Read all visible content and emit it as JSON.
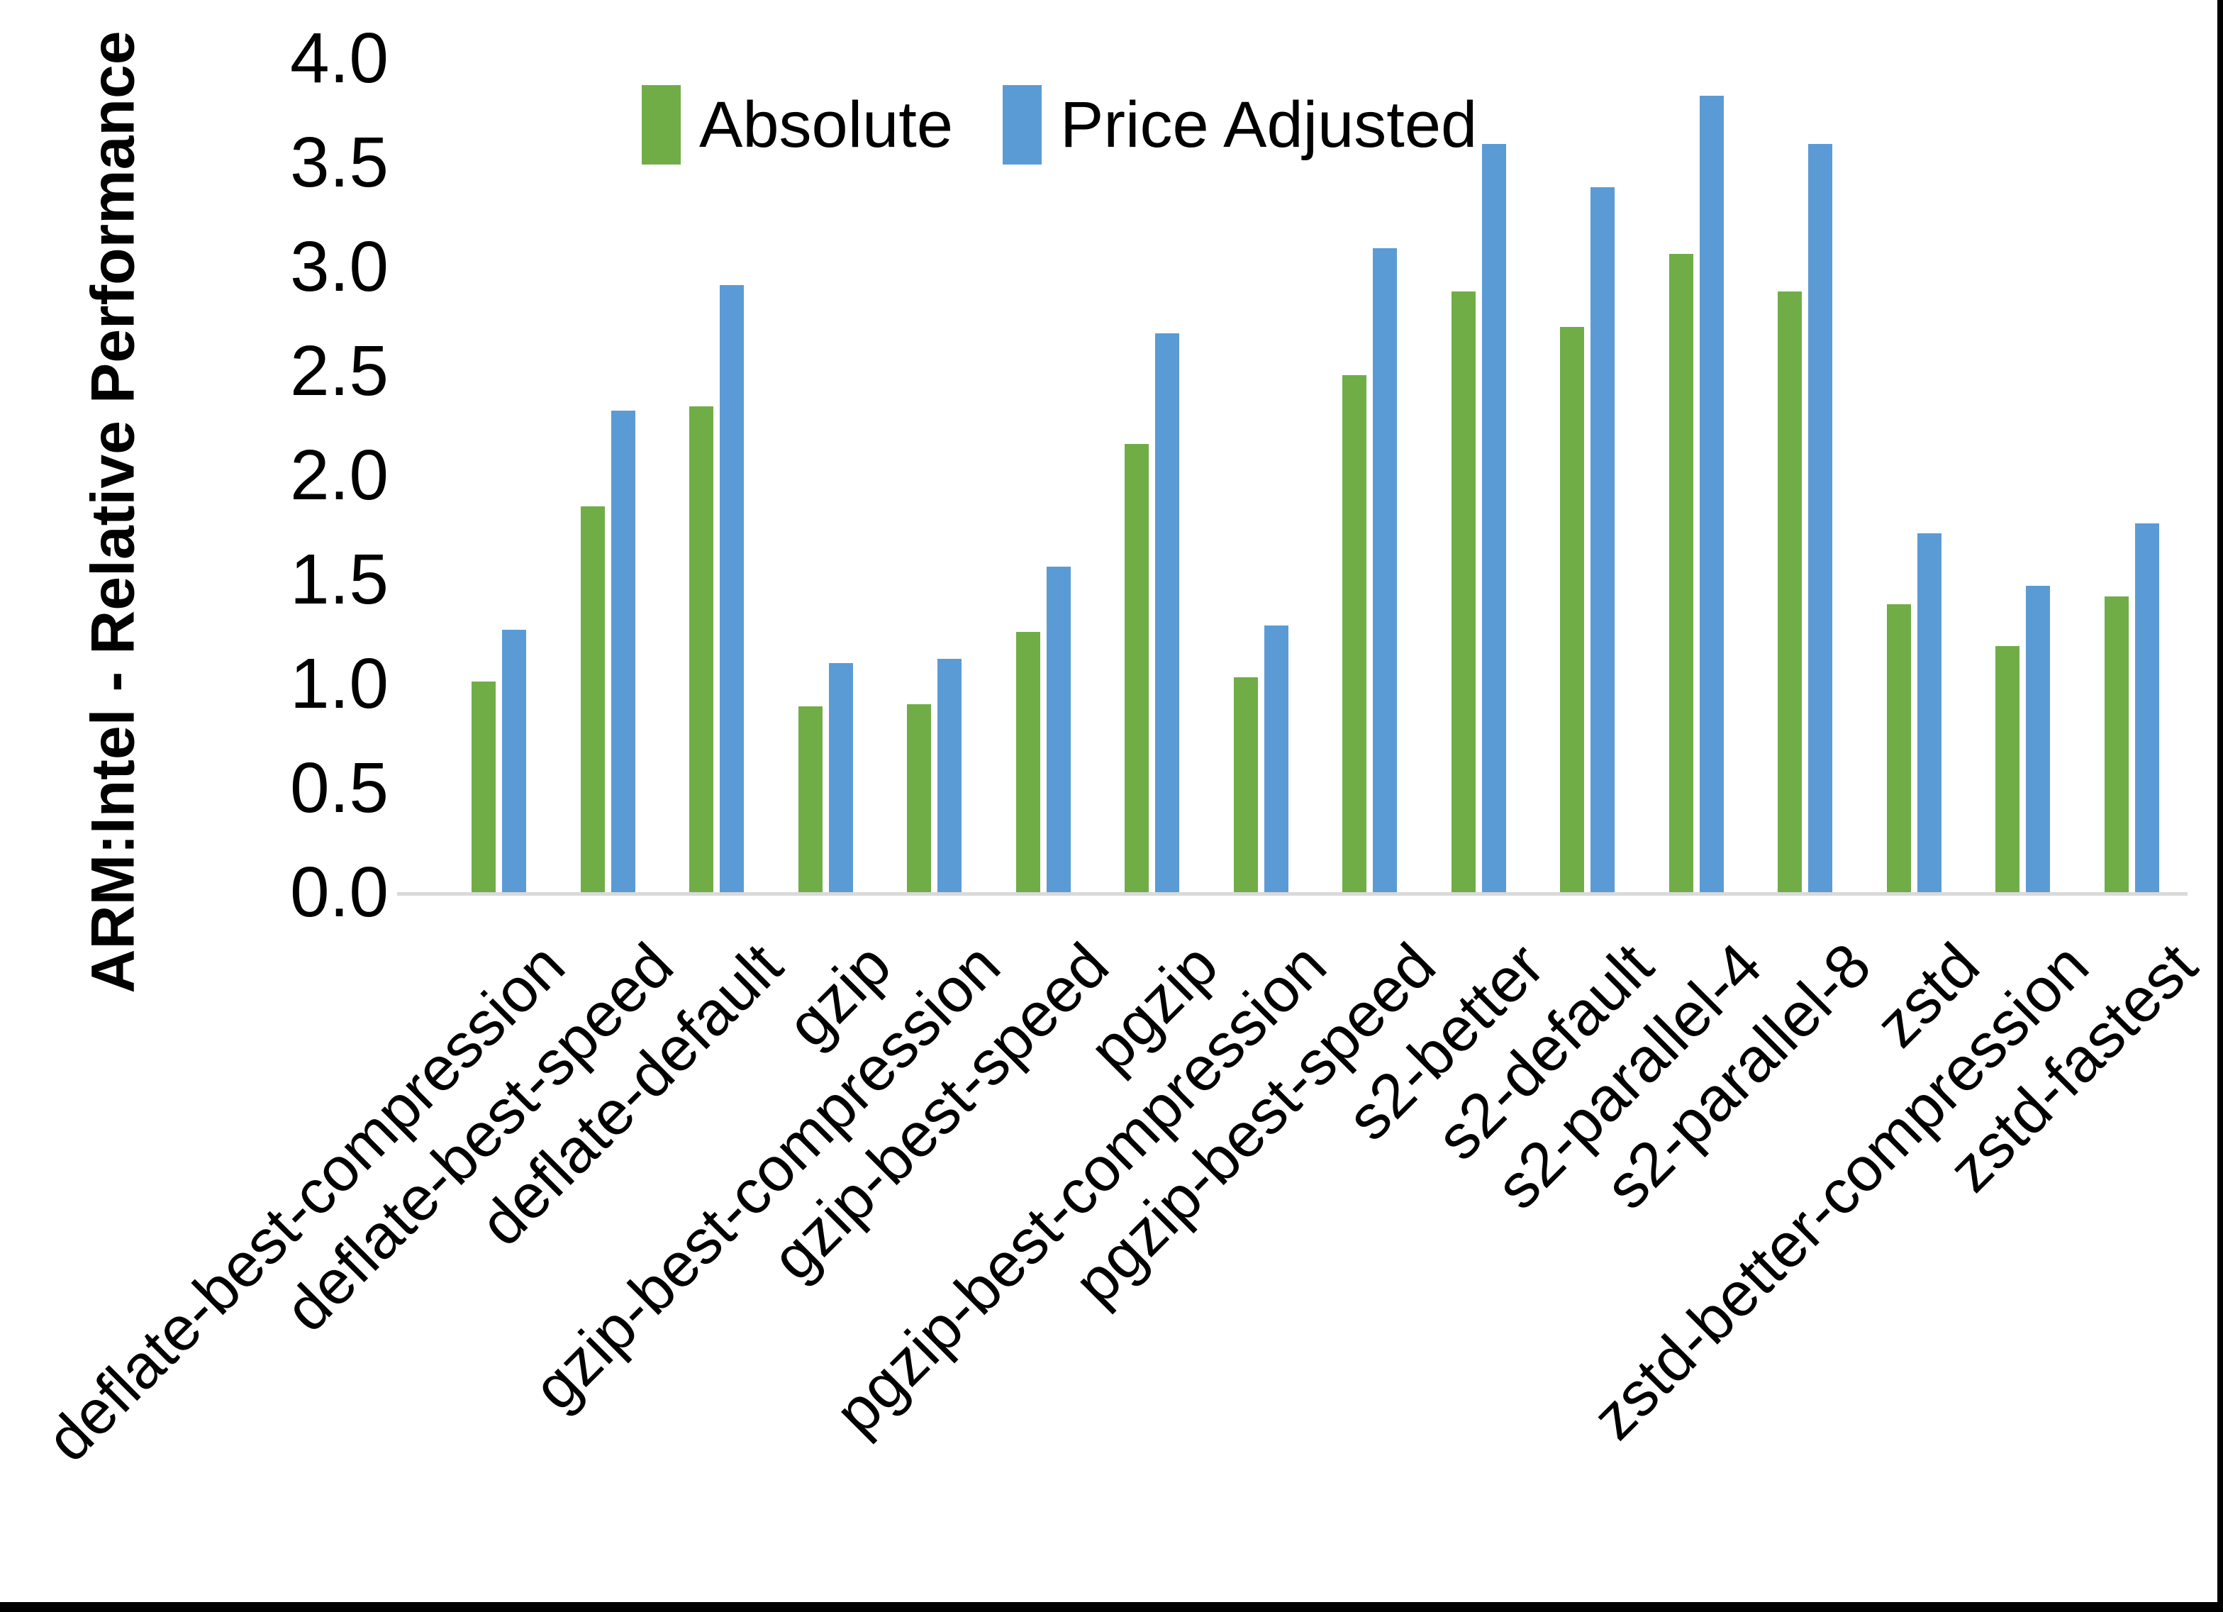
{
  "chart_data": {
    "type": "bar",
    "title": "",
    "ylabel": "ARM:Intel - Relative Performance",
    "xlabel": "",
    "ylim": [
      0.0,
      4.0
    ],
    "ytick_step": 0.5,
    "ytick_decimals": 1,
    "grid": false,
    "legend_position": "top-center",
    "categories": [
      "deflate-best-compression",
      "deflate-best-speed",
      "deflate-default",
      "gzip",
      "gzip-best-compression",
      "gzip-best-speed",
      "pgzip",
      "pgzip-best-compression",
      "pgzip-best-speed",
      "s2-better",
      "s2-default",
      "s2-parallel-4",
      "s2-parallel-8",
      "zstd",
      "zstd-better-compression",
      "zstd-fastest"
    ],
    "series": [
      {
        "name": "Absolute",
        "color": "#70AD47",
        "values": [
          1.01,
          1.85,
          2.33,
          0.89,
          0.9,
          1.25,
          2.15,
          1.03,
          2.48,
          2.88,
          2.71,
          3.06,
          2.88,
          1.38,
          1.18,
          1.42
        ]
      },
      {
        "name": "Price Adjusted",
        "color": "#5B9BD5",
        "values": [
          1.26,
          2.31,
          2.91,
          1.1,
          1.12,
          1.56,
          2.68,
          1.28,
          3.09,
          3.59,
          3.38,
          3.82,
          3.59,
          1.72,
          1.47,
          1.77
        ]
      }
    ]
  },
  "colors": {
    "background": "#FFFFFF",
    "axis_line": "#D9D9D9",
    "text": "#000000",
    "image_edge": "#000000"
  }
}
